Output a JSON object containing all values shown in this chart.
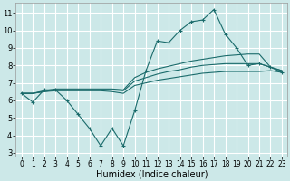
{
  "xlabel": "Humidex (Indice chaleur)",
  "ylabel": "",
  "background_color": "#cce8e8",
  "grid_color": "#ffffff",
  "line_color": "#1a6b6b",
  "xlim": [
    -0.5,
    23.5
  ],
  "ylim": [
    2.8,
    11.6
  ],
  "xticks": [
    0,
    1,
    2,
    3,
    4,
    5,
    6,
    7,
    8,
    9,
    10,
    11,
    12,
    13,
    14,
    15,
    16,
    17,
    18,
    19,
    20,
    21,
    22,
    23
  ],
  "yticks": [
    3,
    4,
    5,
    6,
    7,
    8,
    9,
    10,
    11
  ],
  "series_zigzag": [
    6.4,
    5.9,
    6.6,
    6.6,
    6.0,
    5.2,
    4.4,
    3.4,
    4.4,
    3.4,
    5.4,
    7.7,
    9.4,
    9.3,
    10.0,
    10.5,
    10.6,
    11.2,
    9.8,
    9.0,
    8.0,
    8.1,
    7.9,
    7.6
  ],
  "series_smooth1": [
    6.4,
    6.4,
    6.5,
    6.55,
    6.55,
    6.55,
    6.55,
    6.55,
    6.5,
    6.4,
    6.85,
    7.0,
    7.15,
    7.25,
    7.35,
    7.45,
    7.55,
    7.6,
    7.65,
    7.65,
    7.65,
    7.65,
    7.7,
    7.6
  ],
  "series_smooth2": [
    6.4,
    6.4,
    6.5,
    6.6,
    6.6,
    6.6,
    6.6,
    6.6,
    6.6,
    6.55,
    7.1,
    7.3,
    7.5,
    7.65,
    7.75,
    7.9,
    8.0,
    8.05,
    8.1,
    8.1,
    8.1,
    8.1,
    7.9,
    7.7
  ],
  "series_smooth3": [
    6.4,
    6.4,
    6.55,
    6.65,
    6.65,
    6.65,
    6.65,
    6.65,
    6.65,
    6.6,
    7.3,
    7.6,
    7.8,
    7.95,
    8.1,
    8.25,
    8.35,
    8.45,
    8.55,
    8.6,
    8.65,
    8.65,
    7.9,
    7.7
  ]
}
